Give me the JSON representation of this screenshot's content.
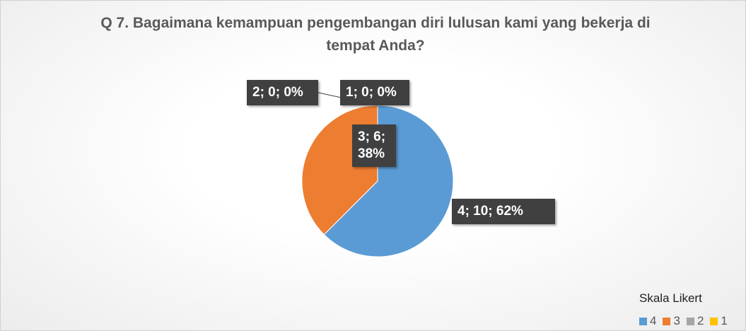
{
  "chart_data": {
    "type": "pie",
    "title": "Q 7. Bagaimana kemampuan pengembangan diri lulusan kami yang bekerja di tempat Anda?",
    "legend_title": "Skala Likert",
    "legend": "bottom-right",
    "series": [
      {
        "name": "Skala Likert",
        "categories": [
          "4",
          "3",
          "2",
          "1"
        ],
        "values": [
          10,
          6,
          0,
          0
        ],
        "value_labels": [
          "4; 10; 62%",
          "3; 6; 38%",
          "2; 0; 0%",
          "1; 0; 0%"
        ],
        "colors": [
          "#5b9bd5",
          "#ed7d31",
          "#a5a5a5",
          "#ffc000"
        ]
      }
    ]
  }
}
